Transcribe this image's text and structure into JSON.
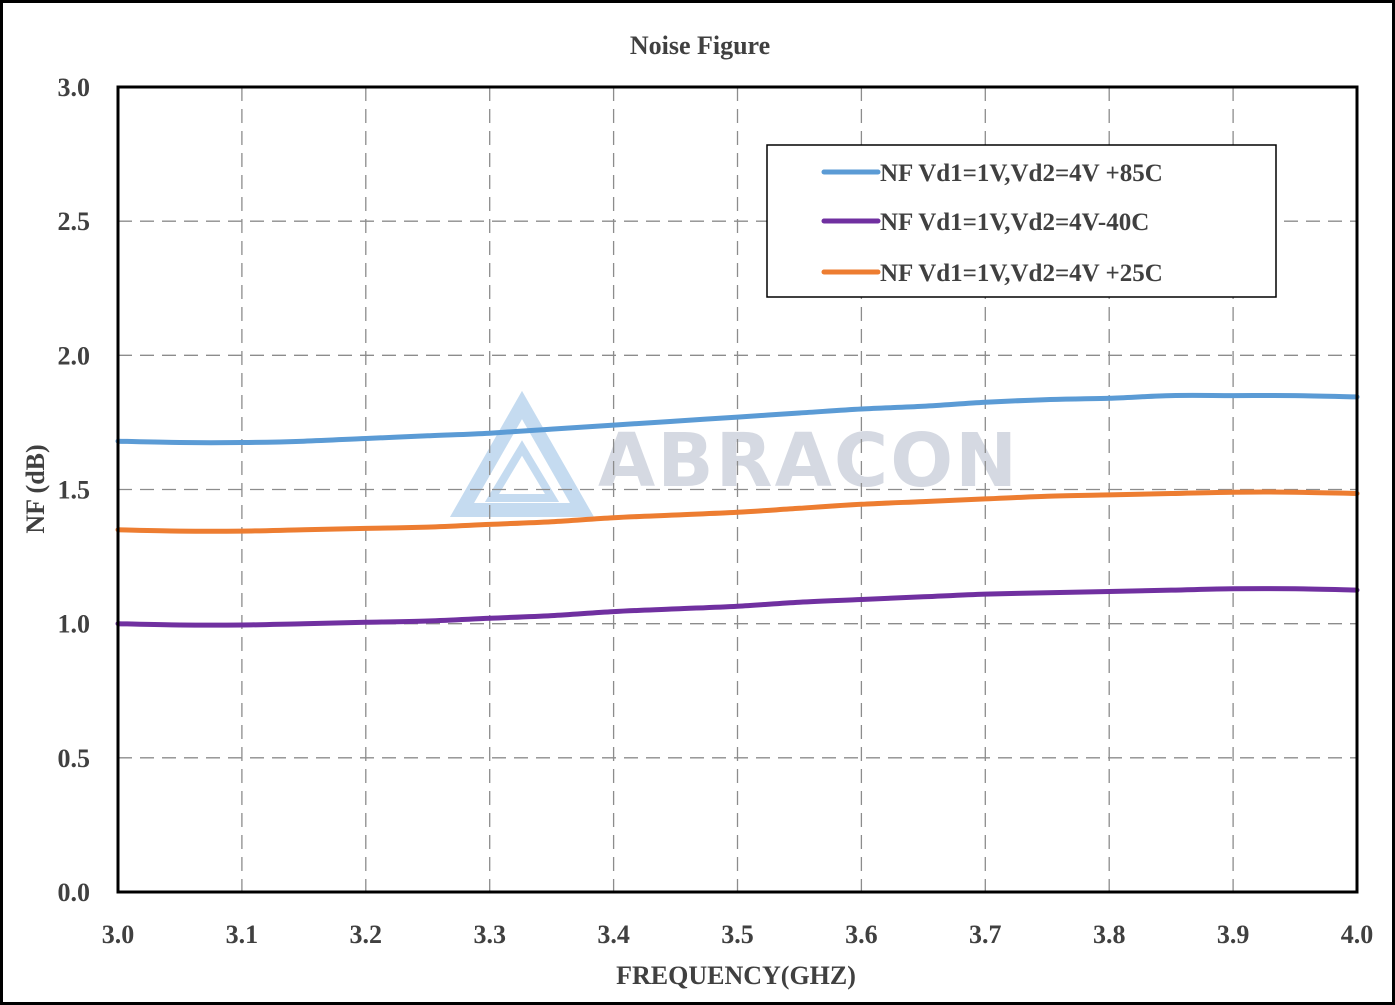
{
  "chart_data": {
    "type": "line",
    "title": "Noise Figure",
    "xlabel": "FREQUENCY(GHZ)",
    "ylabel": "NF (dB)",
    "xlim": [
      3.0,
      4.0
    ],
    "ylim": [
      0.0,
      3.0
    ],
    "xticks": [
      "3.0",
      "3.1",
      "3.2",
      "3.3",
      "3.4",
      "3.5",
      "3.6",
      "3.7",
      "3.8",
      "3.9",
      "4.0"
    ],
    "yticks": [
      "0.0",
      "0.5",
      "1.0",
      "1.5",
      "2.0",
      "2.5",
      "3.0"
    ],
    "grid": true,
    "legend_position": "top-right",
    "watermark": "ABRACON",
    "x": [
      3.0,
      3.05,
      3.1,
      3.15,
      3.2,
      3.25,
      3.3,
      3.35,
      3.4,
      3.45,
      3.5,
      3.55,
      3.6,
      3.65,
      3.7,
      3.75,
      3.8,
      3.85,
      3.9,
      3.95,
      4.0
    ],
    "series": [
      {
        "name": "NF Vd1=1V,Vd2=4V +85C",
        "color": "#5b9bd5",
        "values": [
          1.68,
          1.675,
          1.675,
          1.68,
          1.69,
          1.7,
          1.71,
          1.725,
          1.74,
          1.755,
          1.77,
          1.785,
          1.8,
          1.81,
          1.825,
          1.835,
          1.84,
          1.85,
          1.85,
          1.85,
          1.845
        ]
      },
      {
        "name": "NF Vd1=1V,Vd2=4V-40C",
        "color": "#7030a0",
        "values": [
          1.0,
          0.995,
          0.995,
          1.0,
          1.005,
          1.01,
          1.02,
          1.03,
          1.045,
          1.055,
          1.065,
          1.08,
          1.09,
          1.1,
          1.11,
          1.115,
          1.12,
          1.125,
          1.13,
          1.13,
          1.125
        ]
      },
      {
        "name": "NF Vd1=1V,Vd2=4V +25C",
        "color": "#ed7d31",
        "values": [
          1.35,
          1.345,
          1.345,
          1.35,
          1.355,
          1.36,
          1.37,
          1.38,
          1.395,
          1.405,
          1.415,
          1.43,
          1.445,
          1.455,
          1.465,
          1.475,
          1.48,
          1.485,
          1.49,
          1.49,
          1.485
        ]
      }
    ]
  }
}
